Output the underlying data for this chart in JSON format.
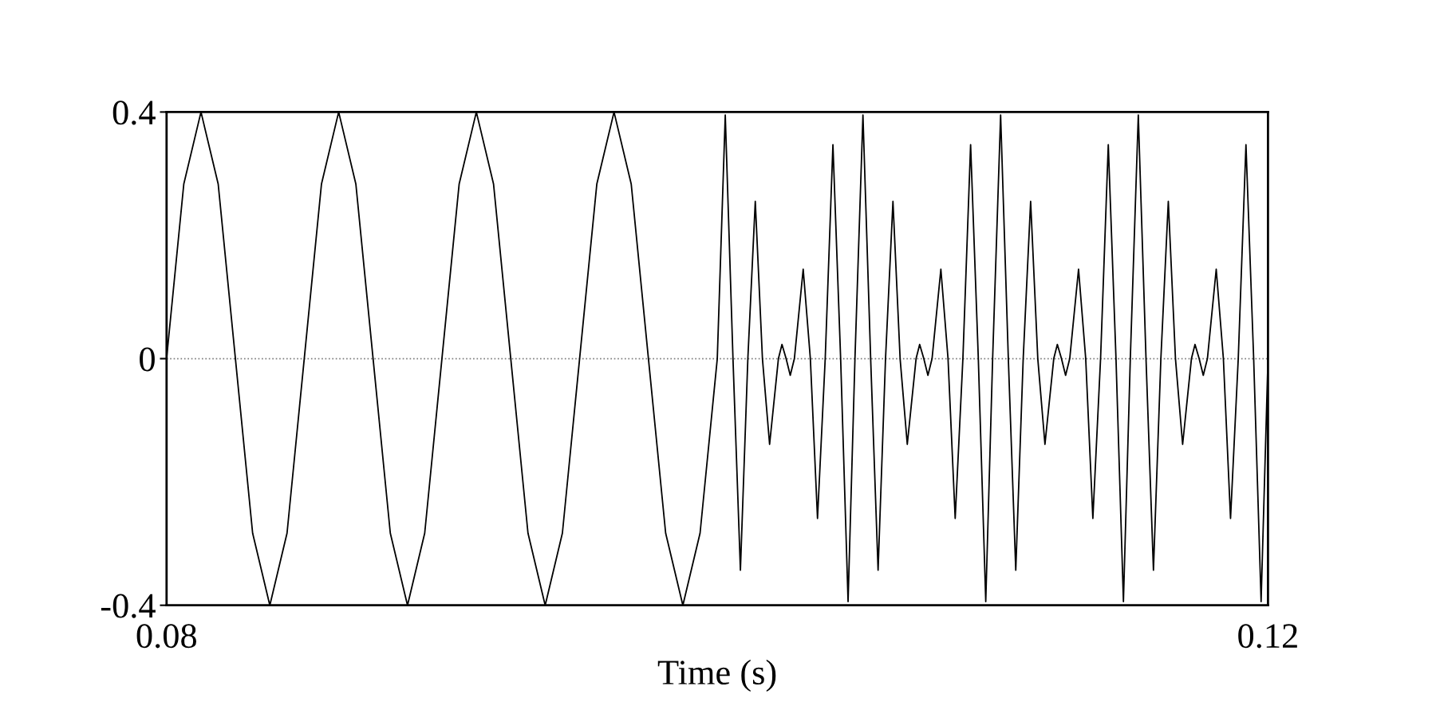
{
  "chart_data": {
    "type": "line",
    "xlabel": "Time (s)",
    "x": [
      0.08,
      0.080625,
      0.08125,
      0.081875,
      0.0825,
      0.083125,
      0.08375,
      0.084375,
      0.085,
      0.085625,
      0.08625,
      0.086875,
      0.0875,
      0.088125,
      0.08875,
      0.089375,
      0.09,
      0.090625,
      0.09125,
      0.091875,
      0.0925,
      0.093125,
      0.09375,
      0.094375,
      0.095,
      0.095625,
      0.09625,
      0.096875,
      0.0975,
      0.098125,
      0.09875,
      0.099375,
      0.1,
      0.10029,
      0.10057,
      0.10084,
      0.10111,
      0.10138,
      0.10164,
      0.1019,
      0.10222,
      0.10235,
      0.1025,
      0.10265,
      0.1028,
      0.10312,
      0.10338,
      0.10364,
      0.10392,
      0.1042,
      0.10448,
      0.10475,
      0.105,
      0.10529,
      0.10557,
      0.10584,
      0.10611,
      0.10638,
      0.10664,
      0.1069,
      0.10722,
      0.10735,
      0.1075,
      0.10765,
      0.1078,
      0.10812,
      0.10838,
      0.10864,
      0.10892,
      0.1092,
      0.10948,
      0.10975,
      0.11,
      0.11029,
      0.11057,
      0.11084,
      0.11111,
      0.11138,
      0.11164,
      0.1119,
      0.11222,
      0.11235,
      0.1125,
      0.11265,
      0.1128,
      0.11312,
      0.11338,
      0.11364,
      0.11392,
      0.1142,
      0.11448,
      0.11475,
      0.115,
      0.11529,
      0.11557,
      0.11584,
      0.11611,
      0.11638,
      0.11664,
      0.1169,
      0.11722,
      0.11735,
      0.1175,
      0.11765,
      0.1178,
      0.11812,
      0.11838,
      0.11864,
      0.11892,
      0.1192,
      0.11948,
      0.11975,
      0.12
    ],
    "series": [
      {
        "color": "#000000",
        "values": [
          0,
          0.283,
          0.4,
          0.283,
          0,
          -0.283,
          -0.4,
          -0.283,
          0,
          0.283,
          0.4,
          0.283,
          0,
          -0.283,
          -0.4,
          -0.283,
          0,
          0.283,
          0.4,
          0.283,
          0,
          -0.283,
          -0.4,
          -0.283,
          0,
          0.283,
          0.4,
          0.283,
          0,
          -0.283,
          -0.4,
          -0.283,
          0,
          0.395,
          0,
          -0.343,
          0,
          0.255,
          0,
          -0.139,
          0,
          0.023,
          0,
          -0.027,
          0,
          0.145,
          0,
          -0.259,
          0,
          0.347,
          0,
          -0.394,
          0,
          0.395,
          0,
          -0.343,
          0,
          0.255,
          0,
          -0.139,
          0,
          0.023,
          0,
          -0.027,
          0,
          0.145,
          0,
          -0.259,
          0,
          0.347,
          0,
          -0.394,
          0,
          0.395,
          0,
          -0.343,
          0,
          0.255,
          0,
          -0.139,
          0,
          0.023,
          0,
          -0.027,
          0,
          0.145,
          0,
          -0.259,
          0,
          0.347,
          0,
          -0.394,
          0,
          0.395,
          0,
          -0.343,
          0,
          0.255,
          0,
          -0.139,
          0,
          0.023,
          0,
          -0.027,
          0,
          0.145,
          0,
          -0.259,
          0,
          0.347,
          0,
          -0.394,
          0
        ]
      }
    ],
    "xlim": [
      0.08,
      0.12
    ],
    "xticks": [
      0.08,
      0.12
    ],
    "ylim": [
      -0.4,
      0.4
    ],
    "yticks": [
      -0.4,
      0,
      0.4
    ],
    "ref_lines": [
      {
        "axis": "y",
        "value": 0,
        "color": "#808080",
        "line_style": "dotted"
      }
    ],
    "grid": false,
    "legend": false,
    "marker": "none",
    "line_style": "solid"
  }
}
